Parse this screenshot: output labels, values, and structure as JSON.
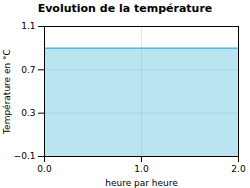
{
  "chart_data": {
    "type": "area",
    "title": "Evolution de la température",
    "xlabel": "heure par heure",
    "ylabel": "Température en °C",
    "x": [
      0,
      2
    ],
    "values": [
      0.9,
      0.9
    ],
    "color": "#55bbdd",
    "xlim": [
      0,
      2
    ],
    "ylim": [
      -0.1,
      1.1
    ],
    "xticks": [
      0,
      1,
      2
    ],
    "yticks": [
      -0.1,
      0.3,
      0.7,
      1.1
    ],
    "grid": true
  }
}
